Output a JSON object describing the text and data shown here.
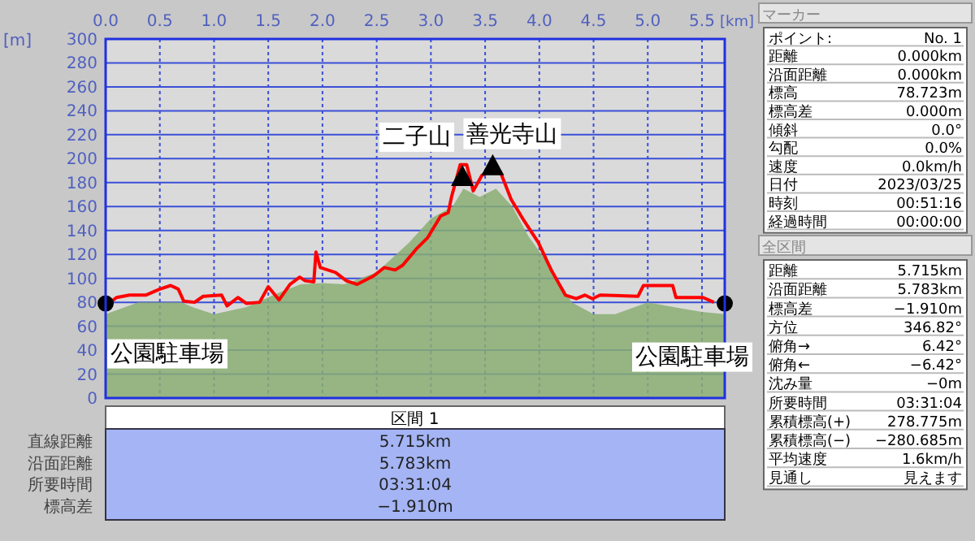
{
  "chart_data": [
    {
      "type": "line",
      "xlabel": "[km]",
      "ylabel": "[m]",
      "xlim": [
        0,
        5.71
      ],
      "ylim": [
        0,
        300
      ],
      "grid": true,
      "xticks": [
        {
          "value": 0,
          "label": "0.0"
        },
        {
          "value": 0.5,
          "label": "0.5"
        },
        {
          "value": 1,
          "label": "1.0"
        },
        {
          "value": 1.5,
          "label": "1.5"
        },
        {
          "value": 2,
          "label": "2.0"
        },
        {
          "value": 2.5,
          "label": "2.5"
        },
        {
          "value": 3,
          "label": "3.0"
        },
        {
          "value": 3.5,
          "label": "3.5"
        },
        {
          "value": 4,
          "label": "4.0"
        },
        {
          "value": 4.5,
          "label": "4.5"
        },
        {
          "value": 5,
          "label": "5.0"
        },
        {
          "value": 5.5,
          "label": "5.5"
        }
      ],
      "yticks": [
        0,
        20,
        40,
        60,
        80,
        100,
        120,
        140,
        160,
        180,
        200,
        220,
        240,
        260,
        280,
        300
      ],
      "series": [
        {
          "type": "area",
          "color": "#8aae72",
          "x": [
            0,
            0.3,
            0.7,
            0.8,
            1.0,
            1.3,
            1.6,
            1.8,
            2.0,
            2.2,
            2.5,
            2.8,
            3.0,
            3.2,
            3.3,
            3.45,
            3.6,
            3.75,
            3.9,
            4.1,
            4.3,
            4.5,
            4.7,
            5.0,
            5.3,
            5.5,
            5.71
          ],
          "values": [
            70,
            80,
            80,
            76,
            70,
            76,
            88,
            95,
            96,
            95,
            105,
            130,
            150,
            160,
            175,
            168,
            175,
            160,
            135,
            110,
            80,
            70,
            70,
            80,
            75,
            72,
            70
          ]
        },
        {
          "type": "line",
          "color": "#ff0000",
          "x": [
            0,
            0.1,
            0.22,
            0.37,
            0.5,
            0.6,
            0.67,
            0.72,
            0.82,
            0.9,
            1.07,
            1.12,
            1.22,
            1.3,
            1.42,
            1.5,
            1.6,
            1.7,
            1.79,
            1.84,
            1.92,
            1.94,
            1.98,
            2.12,
            2.22,
            2.32,
            2.47,
            2.57,
            2.67,
            2.74,
            2.87,
            2.97,
            3.09,
            3.16,
            3.19,
            3.27,
            3.33,
            3.39,
            3.47,
            3.54,
            3.64,
            3.74,
            3.86,
            3.99,
            4.11,
            4.24,
            4.34,
            4.42,
            4.49,
            4.56,
            4.91,
            4.96,
            5.23,
            5.26,
            5.51,
            5.61
          ],
          "values": [
            77,
            84,
            86,
            86,
            91,
            94,
            91,
            81,
            80,
            85,
            86,
            77,
            84,
            79,
            80,
            93,
            82,
            95,
            101,
            98,
            97,
            122,
            109,
            105,
            98,
            95,
            102,
            109,
            107,
            111,
            125,
            134,
            152,
            155,
            168,
            195,
            195,
            173,
            186,
            190,
            189,
            166,
            148,
            130,
            107,
            86,
            83,
            86,
            83,
            86,
            85,
            94,
            94,
            84,
            84,
            80
          ]
        },
        {
          "type": "scatter",
          "marker": "circle",
          "color": "#000000",
          "x": [
            0,
            5.71
          ],
          "values": [
            79,
            79
          ]
        },
        {
          "type": "scatter",
          "marker": "triangle",
          "color": "#000000",
          "x": [
            3.29,
            3.57
          ],
          "values": [
            184,
            193
          ]
        }
      ],
      "annotations": [
        {
          "text": "二子山",
          "x": 3.29,
          "y": 184
        },
        {
          "text": "善光寺山",
          "x": 3.57,
          "y": 193
        },
        {
          "text": "公園駐車場",
          "x": 0,
          "y": 79
        },
        {
          "text": "公園駐車場",
          "x": 5.71,
          "y": 79
        }
      ]
    },
    {
      "type": "other",
      "title": "マーカー",
      "annotations": [
        "ポイント:",
        "No. 1",
        "距離",
        "0.000km",
        "沿面距離",
        "0.000km",
        "標高",
        "78.723m",
        "標高差",
        "0.000m",
        "傾斜",
        "0.0°",
        "勾配",
        "0.0%",
        "速度",
        "0.0km/h",
        "日付",
        "2023/03/25",
        "時刻",
        "00:51:16",
        "経過時間",
        "00:00:00"
      ]
    },
    {
      "type": "other",
      "title": "全区間",
      "annotations": [
        "距離",
        "5.715km",
        "沿面距離",
        "5.783km",
        "標高差",
        "−1.910m",
        "方位",
        "346.82°",
        "俯角→",
        "6.42°",
        "俯角←",
        "−6.42°",
        "沈み量",
        "−0m",
        "所要時間",
        "03:31:04",
        "累積標高(+)",
        "278.775m",
        "累積標高(−)",
        "−280.685m",
        "平均速度",
        "1.6km/h",
        "見通し",
        "見えます"
      ]
    },
    {
      "type": "other",
      "title": "区間 1",
      "annotations": [
        "直線距離",
        "5.715km",
        "沿面距離",
        "5.783km",
        "所要時間",
        "03:31:04",
        "標高差",
        "−1.910m"
      ]
    }
  ]
}
